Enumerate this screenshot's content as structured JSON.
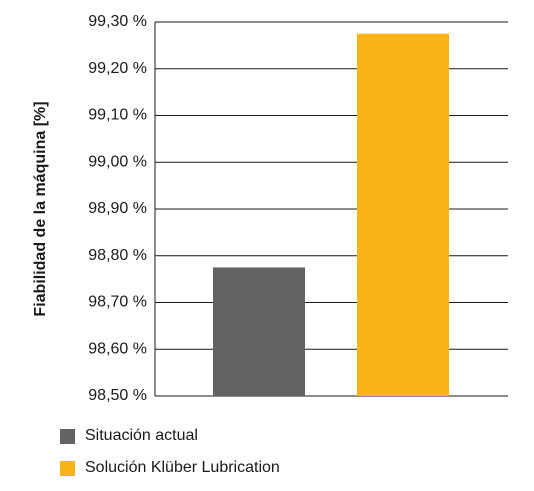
{
  "chart_data": {
    "type": "bar",
    "ylabel": "Fiabilidad de la máquina [%]",
    "categories": [
      "Situación actual",
      "Solución Klüber Lubrication"
    ],
    "values": [
      98.775,
      99.275
    ],
    "ylim": [
      98.5,
      99.3
    ],
    "yticks": [
      {
        "value": 98.5,
        "label": "98,50 %"
      },
      {
        "value": 98.6,
        "label": "98,60 %"
      },
      {
        "value": 98.7,
        "label": "98,70 %"
      },
      {
        "value": 98.8,
        "label": "98,80 %"
      },
      {
        "value": 98.9,
        "label": "98,90 %"
      },
      {
        "value": 99.0,
        "label": "99,00 %"
      },
      {
        "value": 99.1,
        "label": "99,10 %"
      },
      {
        "value": 99.2,
        "label": "99,20 %"
      },
      {
        "value": 99.3,
        "label": "99,30 %"
      }
    ],
    "colors": [
      "#636363",
      "#f9b418"
    ],
    "grid": true,
    "legend": {
      "position": "bottom-left",
      "items": [
        {
          "label": "Situación actual",
          "color": "#636363"
        },
        {
          "label": "Solución Klüber Lubrication",
          "color": "#f9b418"
        }
      ]
    }
  }
}
